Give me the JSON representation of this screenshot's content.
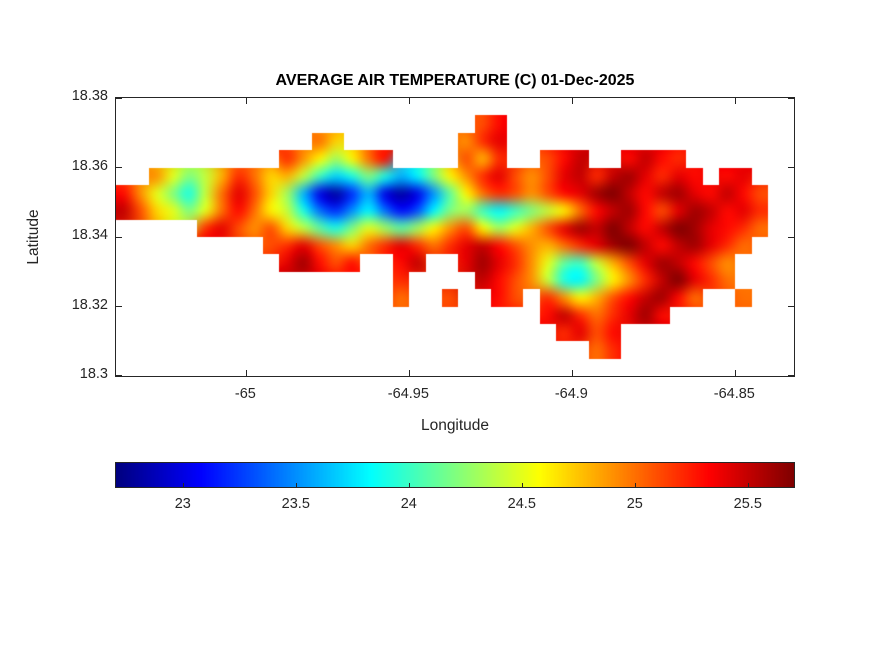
{
  "chart_data": {
    "type": "heatmap",
    "title": "AVERAGE AIR TEMPERATURE (C) 01-Dec-2025",
    "xlabel": "Longitude",
    "ylabel": "Latitude",
    "xlim": [
      -65.04,
      -64.832
    ],
    "ylim": [
      18.3,
      18.38
    ],
    "xticks": [
      -65,
      -64.95,
      -64.9,
      -64.85
    ],
    "xtick_labels": [
      "-65",
      "-64.95",
      "-64.9",
      "-64.85"
    ],
    "yticks": [
      18.38,
      18.36,
      18.34,
      18.32,
      18.3
    ],
    "ytick_labels": [
      "18.38",
      "18.36",
      "18.34",
      "18.32",
      "18.3"
    ],
    "colormap": "jet",
    "clim": [
      22.7,
      25.7
    ],
    "grid_on": false,
    "colorbar": {
      "orientation": "horizontal",
      "ticks": [
        23,
        23.5,
        24,
        24.5,
        25,
        25.5
      ],
      "tick_labels": [
        "23",
        "23.5",
        "24",
        "24.5",
        "25",
        "25.5"
      ]
    },
    "grid": {
      "comment": "Temperature field (deg C x10), 0 = sea. Rows top(18.375)->bottom, cols west(-65.04)->east, 0.005 deg cells.",
      "lon_start": -65.04,
      "lon_step": 0.005,
      "lat_top": 18.375,
      "lat_step": 0.005,
      "ncols": 40,
      "nrows": 14,
      "values_scale": 0.1,
      "sea_value": 0,
      "values": [
        [
          0,
          0,
          0,
          0,
          0,
          0,
          0,
          0,
          0,
          0,
          0,
          0,
          0,
          0,
          0,
          0,
          0,
          0,
          0,
          0,
          0,
          0,
          251,
          253,
          0,
          0,
          0,
          0,
          0,
          0,
          0,
          0,
          0,
          0,
          0,
          0,
          0,
          0,
          0,
          0
        ],
        [
          0,
          0,
          0,
          0,
          0,
          0,
          0,
          0,
          0,
          0,
          0,
          0,
          250,
          247,
          0,
          0,
          0,
          0,
          0,
          0,
          0,
          249,
          252,
          254,
          0,
          0,
          0,
          0,
          0,
          0,
          0,
          0,
          0,
          0,
          0,
          0,
          0,
          0,
          0,
          0
        ],
        [
          0,
          0,
          0,
          0,
          0,
          0,
          0,
          0,
          0,
          0,
          252,
          249,
          246,
          243,
          246,
          250,
          253,
          0,
          0,
          0,
          0,
          251,
          248,
          252,
          0,
          0,
          251,
          253,
          255,
          0,
          0,
          253,
          255,
          253,
          252,
          0,
          0,
          0,
          0,
          0
        ],
        [
          0,
          0,
          249,
          245,
          242,
          244,
          248,
          252,
          250,
          247,
          248,
          244,
          240,
          237,
          239,
          242,
          239,
          236,
          238,
          242,
          246,
          249,
          252,
          254,
          251,
          249,
          251,
          254,
          255,
          252,
          255,
          256,
          254,
          252,
          254,
          253,
          0,
          253,
          254,
          0
        ],
        [
          253,
          249,
          245,
          242,
          239,
          244,
          250,
          254,
          251,
          247,
          243,
          236,
          230,
          228,
          232,
          236,
          230,
          228,
          230,
          235,
          241,
          246,
          250,
          252,
          251,
          249,
          251,
          253,
          254,
          256,
          257,
          255,
          253,
          255,
          256,
          254,
          253,
          255,
          253,
          251
        ],
        [
          255,
          251,
          247,
          245,
          242,
          245,
          250,
          253,
          250,
          246,
          244,
          239,
          234,
          232,
          235,
          238,
          234,
          231,
          233,
          238,
          242,
          243,
          240,
          238,
          240,
          242,
          244,
          246,
          250,
          253,
          255,
          256,
          253,
          251,
          254,
          256,
          255,
          253,
          254,
          252
        ],
        [
          0,
          0,
          0,
          0,
          0,
          252,
          254,
          251,
          249,
          251,
          247,
          244,
          241,
          239,
          242,
          245,
          243,
          241,
          243,
          246,
          249,
          251,
          246,
          243,
          245,
          248,
          251,
          254,
          256,
          255,
          257,
          255,
          253,
          255,
          257,
          256,
          254,
          253,
          252,
          250
        ],
        [
          0,
          0,
          0,
          0,
          0,
          0,
          0,
          0,
          0,
          251,
          252,
          254,
          251,
          249,
          247,
          250,
          252,
          254,
          252,
          250,
          252,
          254,
          255,
          253,
          251,
          249,
          248,
          250,
          252,
          254,
          256,
          257,
          255,
          253,
          255,
          256,
          254,
          252,
          250,
          0
        ],
        [
          0,
          0,
          0,
          0,
          0,
          0,
          0,
          0,
          0,
          0,
          254,
          256,
          253,
          251,
          253,
          0,
          0,
          253,
          255,
          0,
          0,
          254,
          256,
          254,
          252,
          249,
          245,
          241,
          240,
          244,
          248,
          251,
          254,
          256,
          255,
          253,
          251,
          249,
          0,
          0
        ],
        [
          0,
          0,
          0,
          0,
          0,
          0,
          0,
          0,
          0,
          0,
          0,
          0,
          0,
          0,
          0,
          0,
          0,
          252,
          0,
          0,
          0,
          0,
          255,
          253,
          251,
          249,
          244,
          239,
          238,
          242,
          246,
          249,
          252,
          255,
          257,
          254,
          252,
          250,
          0,
          0
        ],
        [
          0,
          0,
          0,
          0,
          0,
          0,
          0,
          0,
          0,
          0,
          0,
          0,
          0,
          0,
          0,
          0,
          0,
          250,
          0,
          0,
          251,
          0,
          0,
          253,
          251,
          0,
          252,
          249,
          246,
          248,
          251,
          253,
          255,
          256,
          253,
          250,
          0,
          0,
          250,
          0
        ],
        [
          0,
          0,
          0,
          0,
          0,
          0,
          0,
          0,
          0,
          0,
          0,
          0,
          0,
          0,
          0,
          0,
          0,
          0,
          0,
          0,
          0,
          0,
          0,
          0,
          0,
          0,
          253,
          255,
          252,
          250,
          252,
          254,
          256,
          253,
          0,
          0,
          0,
          0,
          0,
          0
        ],
        [
          0,
          0,
          0,
          0,
          0,
          0,
          0,
          0,
          0,
          0,
          0,
          0,
          0,
          0,
          0,
          0,
          0,
          0,
          0,
          0,
          0,
          0,
          0,
          0,
          0,
          0,
          0,
          252,
          254,
          251,
          253,
          0,
          0,
          0,
          0,
          0,
          0,
          0,
          0,
          0
        ],
        [
          0,
          0,
          0,
          0,
          0,
          0,
          0,
          0,
          0,
          0,
          0,
          0,
          0,
          0,
          0,
          0,
          0,
          0,
          0,
          0,
          0,
          0,
          0,
          0,
          0,
          0,
          0,
          0,
          0,
          250,
          252,
          0,
          0,
          0,
          0,
          0,
          0,
          0,
          0,
          0
        ]
      ]
    }
  }
}
